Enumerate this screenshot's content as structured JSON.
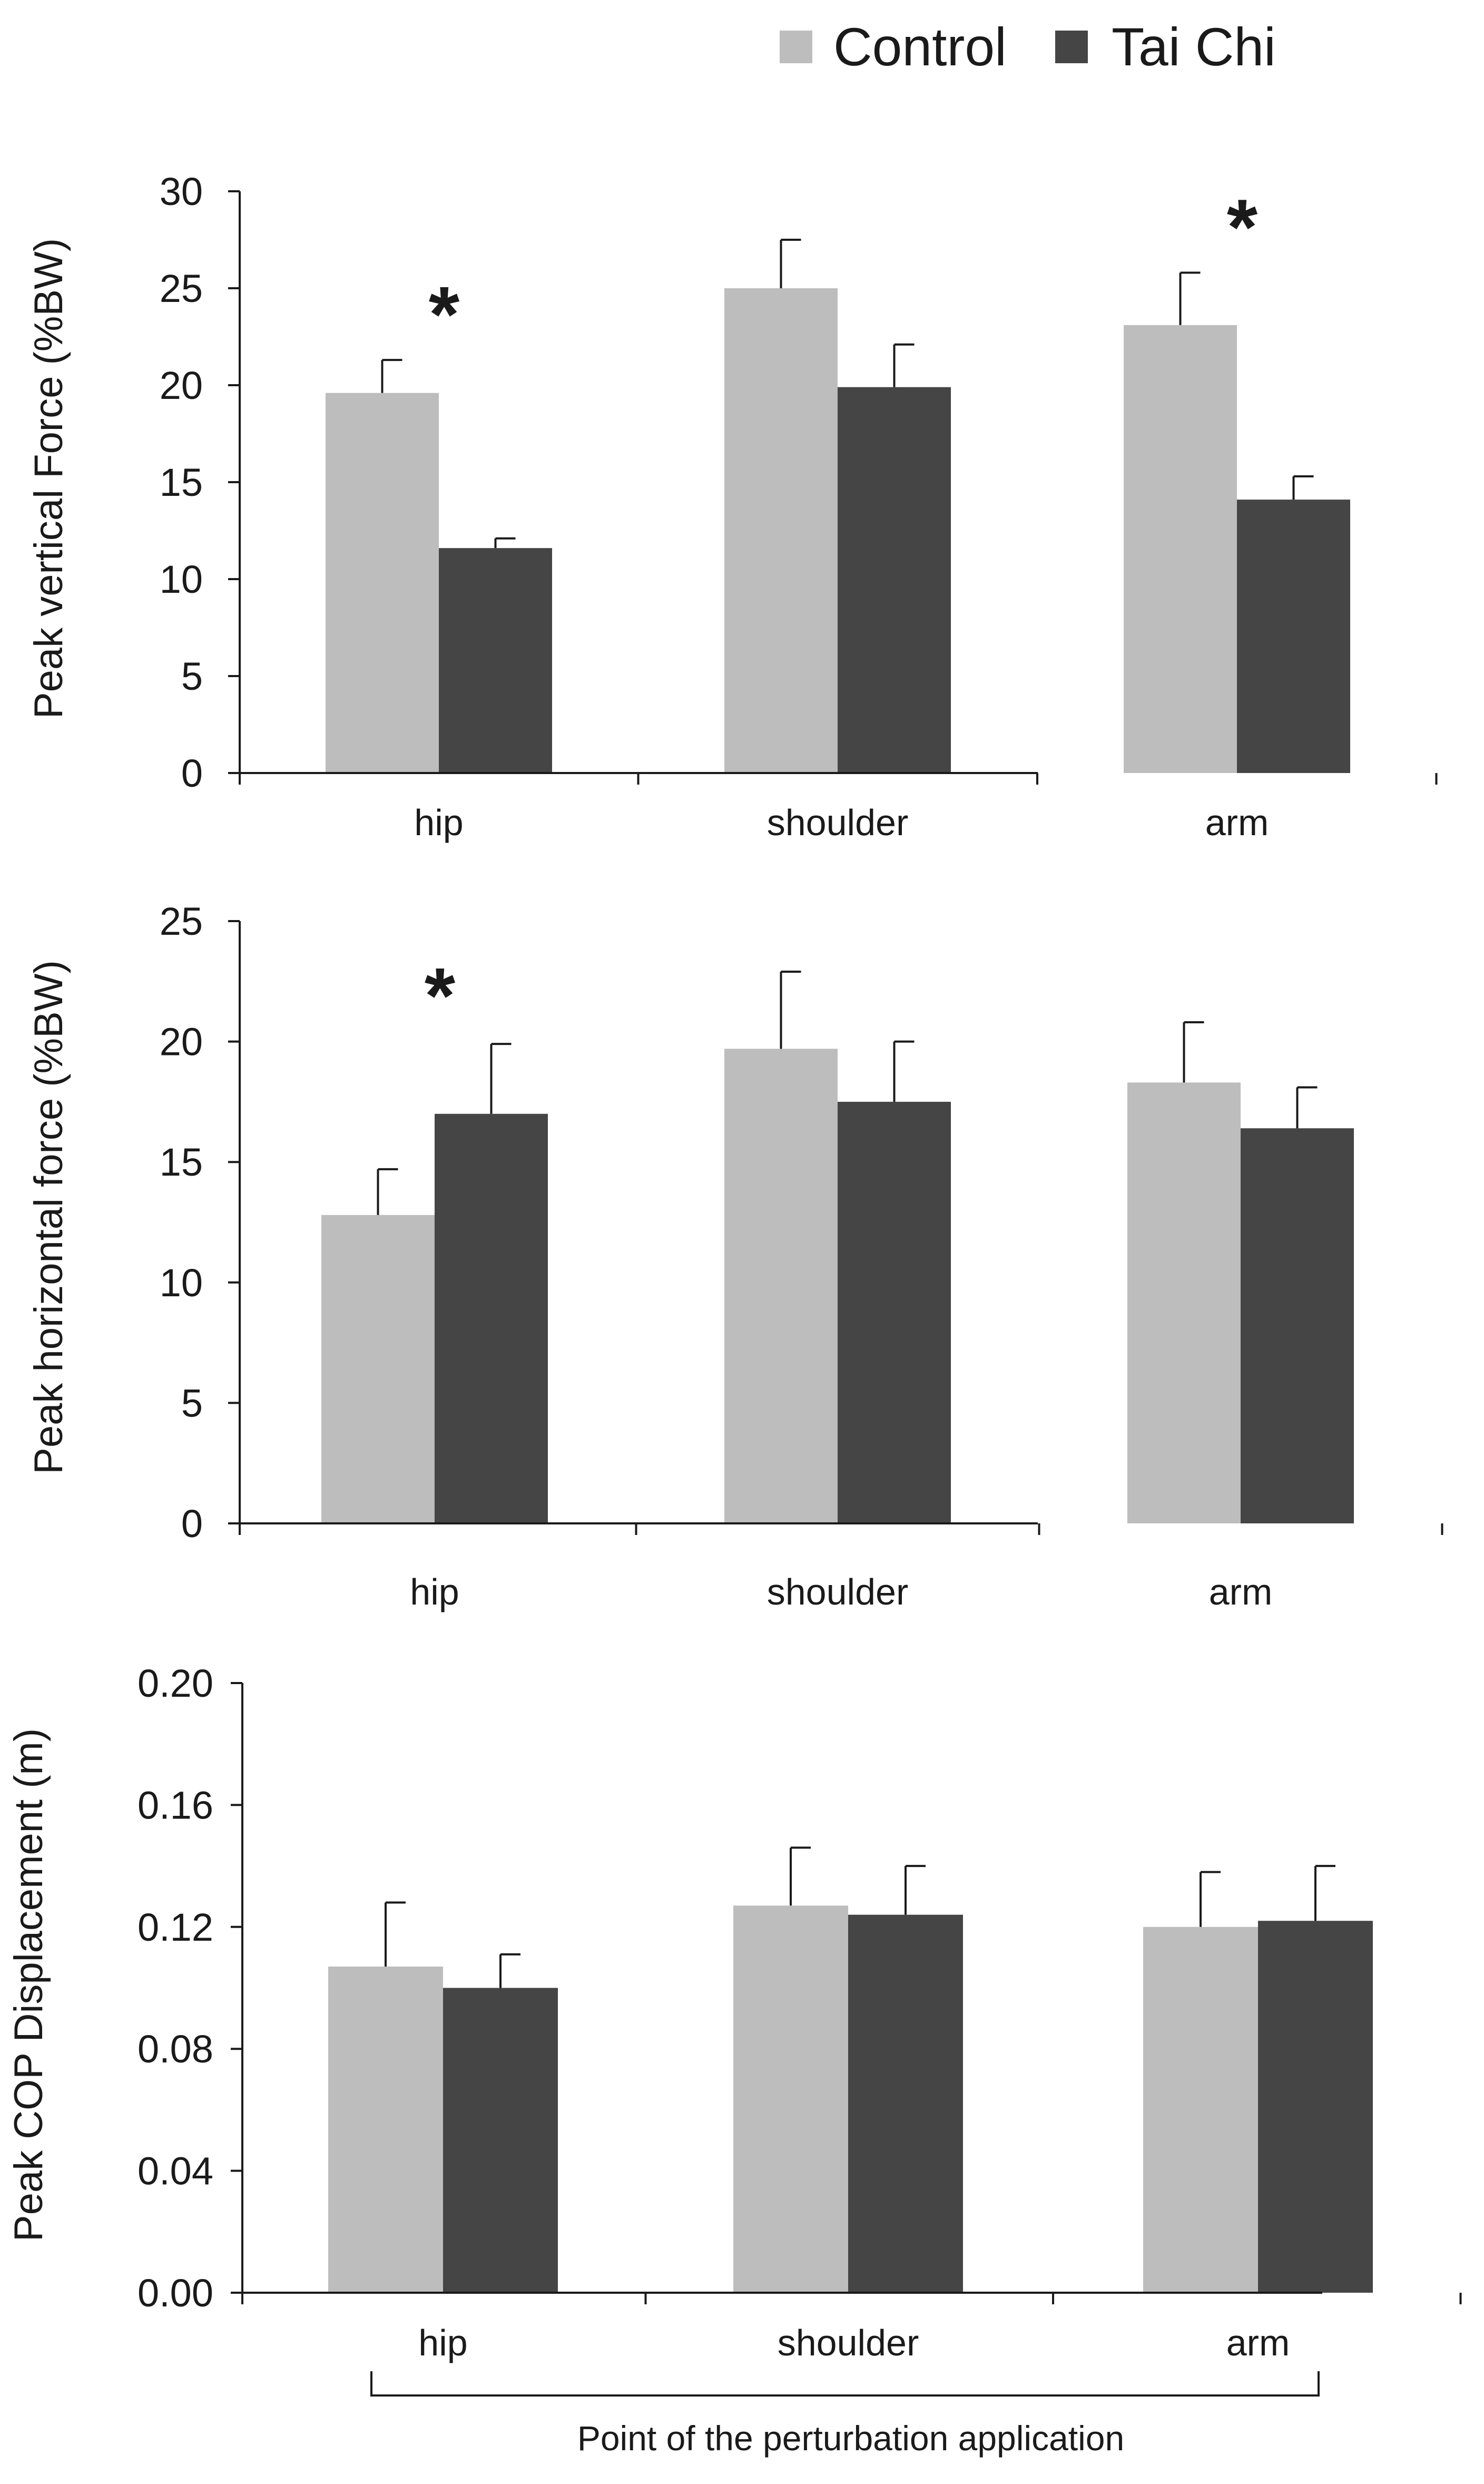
{
  "legend": {
    "control_label": "Control",
    "taichi_label": "Tai Chi"
  },
  "colors": {
    "control": "#bdbdbd",
    "taichi": "#454545",
    "axis": "#1a1a1a"
  },
  "xlabel_bracket": "Point of the perturbation application",
  "chart_data": [
    {
      "type": "bar",
      "title": "",
      "xlabel": "",
      "ylabel": "Peak vertical Force (%BW)",
      "categories": [
        "hip",
        "shoulder",
        "arm"
      ],
      "ylim": [
        0,
        30
      ],
      "yticks": [
        0,
        5,
        10,
        15,
        20,
        25,
        30
      ],
      "ytick_labels": [
        "0",
        "5",
        "10",
        "15",
        "20",
        "25",
        "30"
      ],
      "series": [
        {
          "name": "Control",
          "values": [
            19.6,
            25.0,
            23.1
          ],
          "errors": [
            1.7,
            2.5,
            2.7
          ]
        },
        {
          "name": "Tai Chi",
          "values": [
            11.6,
            19.9,
            14.1
          ],
          "errors": [
            0.5,
            2.2,
            1.2
          ]
        }
      ],
      "significance": [
        "*",
        "",
        "*"
      ]
    },
    {
      "type": "bar",
      "title": "",
      "xlabel": "",
      "ylabel": "Peak horizontal force (%BW)",
      "categories": [
        "hip",
        "shoulder",
        "arm"
      ],
      "ylim": [
        0,
        25
      ],
      "yticks": [
        0,
        5,
        10,
        15,
        20,
        25
      ],
      "ytick_labels": [
        "0",
        "5",
        "10",
        "15",
        "20",
        "25"
      ],
      "series": [
        {
          "name": "Control",
          "values": [
            12.8,
            19.7,
            18.3
          ],
          "errors": [
            1.9,
            3.2,
            2.5
          ]
        },
        {
          "name": "Tai Chi",
          "values": [
            17.0,
            17.5,
            16.4
          ],
          "errors": [
            2.9,
            2.5,
            1.7
          ]
        }
      ],
      "significance": [
        "*",
        "",
        ""
      ]
    },
    {
      "type": "bar",
      "title": "",
      "xlabel": "Point of the perturbation application",
      "ylabel": "Peak COP Displacement (m)",
      "categories": [
        "hip",
        "shoulder",
        "arm"
      ],
      "ylim": [
        0,
        0.2
      ],
      "yticks": [
        0,
        0.04,
        0.08,
        0.12,
        0.16,
        0.2
      ],
      "ytick_labels": [
        "0.00",
        "0.04",
        "0.08",
        "0.12",
        "0.16",
        "0.20"
      ],
      "series": [
        {
          "name": "Control",
          "values": [
            0.107,
            0.127,
            0.12
          ],
          "errors": [
            0.021,
            0.019,
            0.018
          ]
        },
        {
          "name": "Tai Chi",
          "values": [
            0.1,
            0.124,
            0.122
          ],
          "errors": [
            0.011,
            0.016,
            0.018
          ]
        }
      ],
      "significance": [
        "",
        "",
        ""
      ]
    }
  ]
}
